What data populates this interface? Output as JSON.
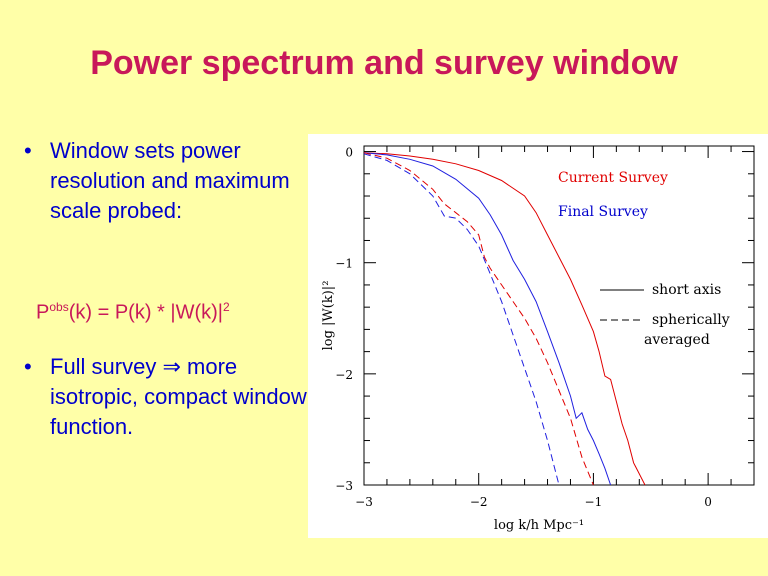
{
  "slide": {
    "title": "Power spectrum and survey window",
    "bullet1": "Window sets power resolution and maximum scale probed:",
    "formula_p": "P",
    "formula_sup": "obs",
    "formula_rest": "(k) = P(k) * |W(k)|",
    "formula_exp": "2",
    "bullet2": "Full survey ⇒  more isotropic,  compact window function.",
    "bullet_glyph": "•"
  },
  "chart_data": {
    "type": "line",
    "xlabel": "log k/h Mpc⁻¹",
    "ylabel": "log  |W(k)|²",
    "xlim": [
      -3,
      0.4
    ],
    "ylim": [
      -3,
      0.05
    ],
    "x_ticks": [
      "−3",
      "−2",
      "−1",
      "0"
    ],
    "y_ticks": [
      "0",
      "−1",
      "−2",
      "−3"
    ],
    "annotations": {
      "current": "Current Survey",
      "final": "Final Survey",
      "solid": "short axis",
      "dashed": "spherically",
      "dashed2": "averaged"
    },
    "colors": {
      "current": "#E00000",
      "final": "#2020E0",
      "text_red": "#E00000",
      "text_blue": "#0000CC"
    },
    "series": [
      {
        "label_key": "current",
        "style": "solid",
        "x": [
          -3.0,
          -2.8,
          -2.6,
          -2.4,
          -2.2,
          -2.0,
          -1.8,
          -1.6,
          -1.5,
          -1.4,
          -1.3,
          -1.2,
          -1.1,
          -1.0,
          -0.95,
          -0.9,
          -0.85,
          -0.8,
          -0.75,
          -0.7,
          -0.65,
          -0.6,
          -0.55
        ],
        "y": [
          -0.01,
          -0.02,
          -0.04,
          -0.07,
          -0.11,
          -0.17,
          -0.26,
          -0.4,
          -0.55,
          -0.75,
          -0.95,
          -1.15,
          -1.38,
          -1.62,
          -1.8,
          -2.02,
          -2.05,
          -2.25,
          -2.45,
          -2.6,
          -2.8,
          -2.9,
          -3.0
        ]
      },
      {
        "label_key": "final",
        "style": "solid",
        "x": [
          -3.0,
          -2.8,
          -2.6,
          -2.4,
          -2.2,
          -2.0,
          -1.9,
          -1.8,
          -1.7,
          -1.6,
          -1.5,
          -1.4,
          -1.3,
          -1.2,
          -1.15,
          -1.1,
          -1.05,
          -1.0,
          -0.95,
          -0.9,
          -0.85
        ],
        "y": [
          -0.01,
          -0.03,
          -0.07,
          -0.13,
          -0.25,
          -0.42,
          -0.57,
          -0.75,
          -0.98,
          -1.15,
          -1.35,
          -1.62,
          -1.9,
          -2.2,
          -2.4,
          -2.35,
          -2.5,
          -2.6,
          -2.72,
          -2.85,
          -3.0
        ]
      },
      {
        "label_key": "current",
        "style": "dashed",
        "x": [
          -3.0,
          -2.8,
          -2.6,
          -2.4,
          -2.3,
          -2.2,
          -2.1,
          -2.0,
          -1.95,
          -1.9,
          -1.8,
          -1.7,
          -1.6,
          -1.5,
          -1.4,
          -1.3,
          -1.2,
          -1.1,
          -1.0
        ],
        "y": [
          -0.01,
          -0.06,
          -0.17,
          -0.34,
          -0.47,
          -0.55,
          -0.63,
          -0.75,
          -0.95,
          -1.05,
          -1.2,
          -1.35,
          -1.5,
          -1.68,
          -1.9,
          -2.15,
          -2.4,
          -2.75,
          -3.0
        ]
      },
      {
        "label_key": "final",
        "style": "dashed",
        "x": [
          -3.0,
          -2.8,
          -2.6,
          -2.4,
          -2.3,
          -2.2,
          -2.1,
          -2.0,
          -1.9,
          -1.8,
          -1.7,
          -1.6,
          -1.5,
          -1.4,
          -1.3
        ],
        "y": [
          -0.02,
          -0.08,
          -0.2,
          -0.4,
          -0.58,
          -0.6,
          -0.7,
          -0.85,
          -1.1,
          -1.35,
          -1.65,
          -1.95,
          -2.25,
          -2.6,
          -3.0
        ]
      }
    ]
  }
}
